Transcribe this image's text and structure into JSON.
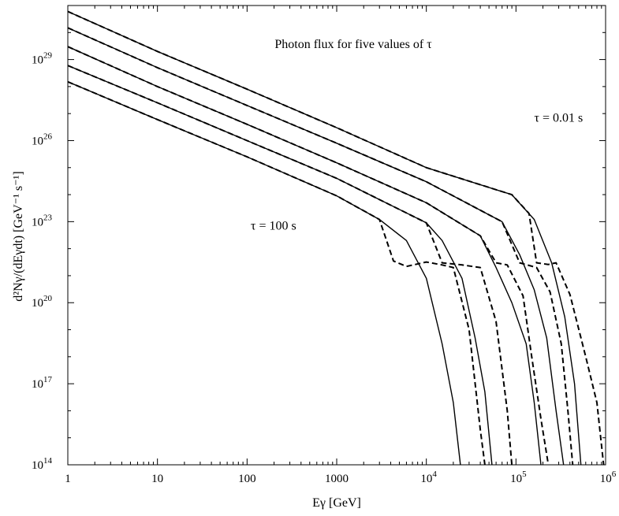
{
  "chart_data": {
    "type": "line",
    "title": "Photon flux for five values of τ",
    "xlabel": "Eγ [GeV]",
    "ylabel": "d²Nγ/(dEγdt) [GeV⁻¹ s⁻¹]",
    "x_scale": "log",
    "y_scale": "log",
    "xlim": [
      1,
      1000000
    ],
    "ylim": [
      100000000000000.0,
      1e+31
    ],
    "x_ticks": [
      {
        "value": 1,
        "mantissa": "1",
        "exp": ""
      },
      {
        "value": 10,
        "mantissa": "10",
        "exp": ""
      },
      {
        "value": 100,
        "mantissa": "100",
        "exp": ""
      },
      {
        "value": 1000,
        "mantissa": "1000",
        "exp": ""
      },
      {
        "value": 10000,
        "mantissa": "10",
        "exp": "4"
      },
      {
        "value": 100000,
        "mantissa": "10",
        "exp": "5"
      },
      {
        "value": 1000000,
        "mantissa": "10",
        "exp": "6"
      }
    ],
    "y_ticks": [
      {
        "value": 100000000000000.0,
        "mantissa": "10",
        "exp": "14"
      },
      {
        "value": 1e+17,
        "mantissa": "10",
        "exp": "17"
      },
      {
        "value": 1e+20,
        "mantissa": "10",
        "exp": "20"
      },
      {
        "value": 1e+23,
        "mantissa": "10",
        "exp": "23"
      },
      {
        "value": 1e+26,
        "mantissa": "10",
        "exp": "26"
      },
      {
        "value": 1e+29,
        "mantissa": "10",
        "exp": "29"
      }
    ],
    "annotations": [
      {
        "text": "τ = 0.01 s",
        "x": 160000,
        "y": 5e+26
      },
      {
        "text": "τ = 100 s",
        "x": 110,
        "y": 5e+22
      }
    ],
    "series": [
      {
        "style": "solid",
        "x": [
          1,
          10,
          100,
          1000,
          3000,
          6000,
          10000,
          15000,
          20000,
          24000
        ],
        "y": [
          1.5e+28,
          6e+26,
          2.5e+25,
          9e+23,
          1.2e+23,
          2e+22,
          8e+20,
          3e+18,
          2e+16,
          100000000000000.0
        ]
      },
      {
        "style": "dashed",
        "x": [
          1,
          10,
          100,
          1000,
          3000,
          4300,
          6000,
          10000,
          15000,
          20000,
          30000,
          40000,
          45000
        ],
        "y": [
          1.5e+28,
          6e+26,
          2.5e+25,
          9e+23,
          1.2e+23,
          3.5e+21,
          2.2e+21,
          3.2e+21,
          2.5e+21,
          2e+21,
          1e+19,
          2000000000000000.0,
          100000000000000.0
        ]
      },
      {
        "style": "solid",
        "x": [
          1,
          10,
          100,
          1000,
          10000,
          15000,
          25000,
          35000,
          45000,
          54000
        ],
        "y": [
          6e+28,
          2.5e+27,
          1e+26,
          4e+24,
          9e+22,
          2e+22,
          8e+20,
          5e+18,
          5e+16,
          100000000000000.0
        ]
      },
      {
        "style": "dashed",
        "x": [
          1,
          10,
          100,
          1000,
          10000,
          15000,
          25000,
          40000,
          60000,
          80000,
          90000
        ],
        "y": [
          6e+28,
          2.5e+27,
          1e+26,
          4e+24,
          9e+22,
          3e+21,
          2.5e+21,
          2e+21,
          2e+19,
          1e+16,
          100000000000000.0
        ]
      },
      {
        "style": "solid",
        "x": [
          1,
          10,
          100,
          1000,
          10000,
          40000,
          60000,
          90000,
          130000,
          160000,
          190000
        ],
        "y": [
          3e+29,
          1e+28,
          4e+26,
          1.5e+25,
          5e+23,
          3e+22,
          2e+21,
          1e+20,
          3e+18,
          2e+16,
          100000000000000.0
        ]
      },
      {
        "style": "dashed",
        "x": [
          1,
          10,
          100,
          1000,
          10000,
          40000,
          60000,
          80000,
          120000,
          150000,
          190000,
          230000
        ],
        "y": [
          3e+29,
          1e+28,
          4e+26,
          1.5e+25,
          5e+23,
          3e+22,
          3e+21,
          2.5e+21,
          1.8e+20,
          1e+18,
          5000000000000000.0,
          100000000000000.0
        ]
      },
      {
        "style": "solid",
        "x": [
          1,
          10,
          100,
          1000,
          10000,
          70000,
          110000,
          160000,
          220000,
          280000,
          340000
        ],
        "y": [
          1.5e+30,
          5e+28,
          2e+27,
          8e+25,
          3e+24,
          1e+23,
          6e+21,
          3e+20,
          5e+18,
          1e+16,
          100000000000000.0
        ]
      },
      {
        "style": "dashed",
        "x": [
          1,
          10,
          100,
          1000,
          10000,
          70000,
          110000,
          170000,
          240000,
          320000,
          380000,
          430000
        ],
        "y": [
          1.5e+30,
          5e+28,
          2e+27,
          8e+25,
          3e+24,
          1e+23,
          3e+21,
          2e+21,
          2.5e+20,
          3e+18,
          1e+16,
          100000000000000.0
        ]
      },
      {
        "style": "solid",
        "x": [
          1,
          10,
          100,
          1000,
          10000,
          90000,
          160000,
          250000,
          350000,
          450000,
          530000
        ],
        "y": [
          6e+30,
          2e+29,
          8e+27,
          3e+26,
          1e+25,
          1e+24,
          1.2e+23,
          3e+21,
          3e+19,
          1e+17,
          100000000000000.0
        ]
      },
      {
        "style": "dashed",
        "x": [
          1,
          10,
          100,
          1000,
          10000,
          90000,
          140000,
          170000,
          230000,
          280000,
          400000,
          600000,
          800000,
          950000
        ],
        "y": [
          6e+30,
          2e+29,
          8e+27,
          3e+26,
          1e+25,
          1e+24,
          2e+23,
          3e+21,
          2.6e+21,
          3e+21,
          2e+20,
          1e+18,
          2e+16,
          100000000000000.0
        ]
      }
    ]
  }
}
